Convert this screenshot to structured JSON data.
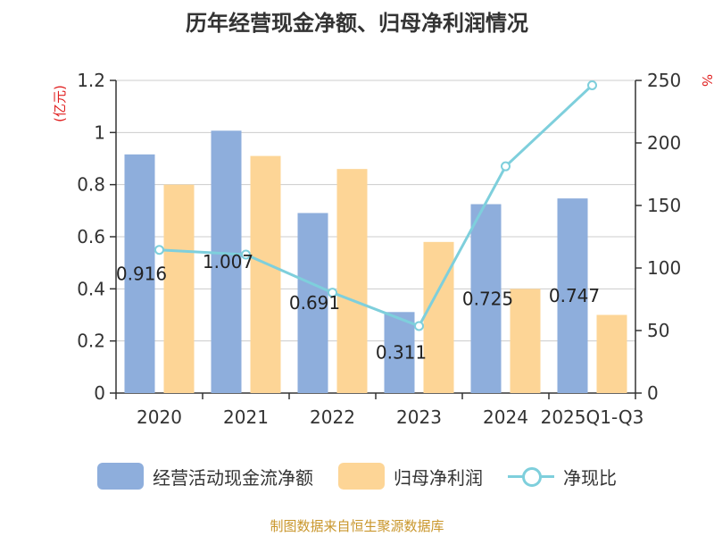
{
  "title": "历年经营现金净额、归母净利润情况",
  "source_text": "制图数据来自恒生聚源数据库",
  "colors": {
    "bar1": "#8eaedc",
    "bar2": "#fdd596",
    "line": "#7ecfdc",
    "axis_unit": "#e02020"
  },
  "chart_data": {
    "type": "bar",
    "categories": [
      "2020",
      "2021",
      "2022",
      "2023",
      "2024",
      "2025Q1-Q3"
    ],
    "series": [
      {
        "name": "经营活动现金流净额",
        "type": "bar",
        "axis": "left",
        "values": [
          0.916,
          1.007,
          0.691,
          0.311,
          0.725,
          0.747
        ],
        "data_labels": [
          "0.916",
          "1.007",
          "0.691",
          "0.311",
          "0.725",
          "0.747"
        ]
      },
      {
        "name": "归母净利润",
        "type": "bar",
        "axis": "left",
        "values": [
          0.8,
          0.91,
          0.86,
          0.58,
          0.4,
          0.3
        ]
      },
      {
        "name": "净现比",
        "type": "line",
        "axis": "right",
        "values": [
          114.5,
          110.7,
          80.3,
          53.6,
          181.3,
          246.1
        ]
      }
    ],
    "y_left": {
      "unit_label": "(亿元)",
      "ylim": [
        0,
        1.2
      ],
      "ticks": [
        "0",
        "0.2",
        "0.4",
        "0.6",
        "0.8",
        "1",
        "1.2"
      ]
    },
    "y_right": {
      "unit_label": "%",
      "ylim": [
        0,
        250
      ],
      "ticks": [
        "0",
        "50",
        "100",
        "150",
        "200",
        "250"
      ]
    },
    "grid": true,
    "legend_position": "bottom"
  }
}
